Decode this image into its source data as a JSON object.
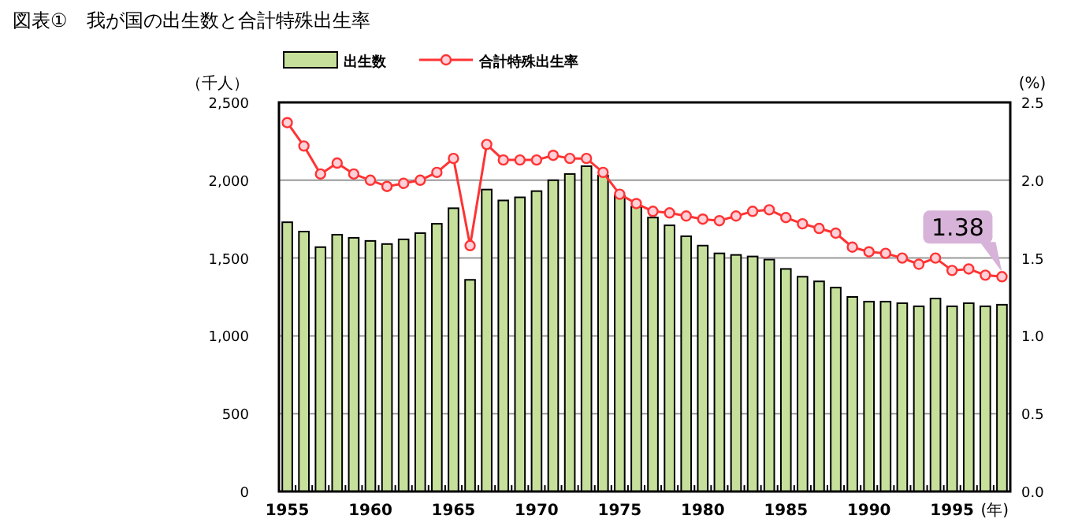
{
  "chart_data": {
    "type": "bar",
    "title": "図表①　我が国の出生数と合計特殊出生率",
    "categories": [
      "1955",
      null,
      null,
      null,
      null,
      "1960",
      null,
      null,
      null,
      null,
      "1965",
      null,
      null,
      null,
      null,
      "1970",
      null,
      null,
      null,
      null,
      "1975",
      null,
      null,
      null,
      null,
      "1980",
      null,
      null,
      null,
      null,
      "1985",
      null,
      null,
      null,
      null,
      "1990",
      null,
      null,
      null,
      null,
      "1995",
      null,
      null,
      null
    ],
    "xlabel": "(年)",
    "ylabel": "（千人）",
    "y2label": "(%)",
    "series": [
      {
        "name": "出生数",
        "color": "#c6e09c",
        "values": [
          1730,
          1670,
          1570,
          1650,
          1630,
          1610,
          1590,
          1620,
          1660,
          1720,
          1820,
          1360,
          1940,
          1870,
          1890,
          1930,
          2000,
          2040,
          2090,
          2030,
          1900,
          1830,
          1760,
          1710,
          1640,
          1580,
          1530,
          1520,
          1510,
          1490,
          1430,
          1380,
          1350,
          1310,
          1250,
          1220,
          1220,
          1210,
          1190,
          1240,
          1190,
          1210,
          1190,
          1200
        ]
      },
      {
        "name": "合計特殊出生率",
        "type": "line",
        "axis": "y2",
        "color": "#ff3333",
        "values": [
          2.37,
          2.22,
          2.04,
          2.11,
          2.04,
          2.0,
          1.96,
          1.98,
          2.0,
          2.05,
          2.14,
          1.58,
          2.23,
          2.13,
          2.13,
          2.13,
          2.16,
          2.14,
          2.14,
          2.05,
          1.91,
          1.85,
          1.8,
          1.79,
          1.77,
          1.75,
          1.74,
          1.77,
          1.8,
          1.81,
          1.76,
          1.72,
          1.69,
          1.66,
          1.57,
          1.54,
          1.53,
          1.5,
          1.46,
          1.5,
          1.42,
          1.43,
          1.39,
          1.38
        ]
      }
    ],
    "ylim": [
      0,
      2500
    ],
    "yticks": [
      0,
      500,
      {
        "value": 1000,
        "label": "1,000"
      },
      {
        "value": 1500,
        "label": "1,500"
      },
      {
        "value": 2000,
        "label": "2,000"
      },
      {
        "value": 2500,
        "label": "2,500"
      }
    ],
    "y2lim": [
      0,
      2.5
    ],
    "y2ticks": [
      {
        "value": 0,
        "label": "0.0"
      },
      0.5,
      {
        "value": 1,
        "label": "1.0"
      },
      1.5,
      {
        "value": 2,
        "label": "2.0"
      },
      2.5
    ],
    "annotations": [
      "1.38"
    ],
    "grid": "y",
    "legend": "top",
    "marker": "circle"
  }
}
